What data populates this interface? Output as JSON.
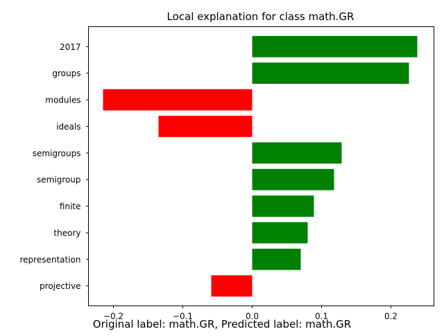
{
  "chart_data": {
    "type": "bar",
    "orientation": "horizontal",
    "title": "Local explanation for class math.GR",
    "categories": [
      "2017",
      "groups",
      "modules",
      "ideals",
      "semigroups",
      "semigroup",
      "finite",
      "theory",
      "representation",
      "projective"
    ],
    "values": [
      0.238,
      0.226,
      -0.215,
      -0.135,
      0.129,
      0.118,
      0.089,
      0.08,
      0.07,
      -0.059
    ],
    "xlim": [
      -0.236,
      0.262
    ],
    "x_ticks": [
      -0.2,
      -0.1,
      0.0,
      0.1,
      0.2
    ],
    "x_tick_labels": [
      "−0.2",
      "−0.1",
      "0.0",
      "0.1",
      "0.2"
    ],
    "positive_color": "#008000",
    "negative_color": "#ff0000",
    "grid": false,
    "legend": "none"
  },
  "caption": "Original label: math.GR, Predicted label: math.GR"
}
